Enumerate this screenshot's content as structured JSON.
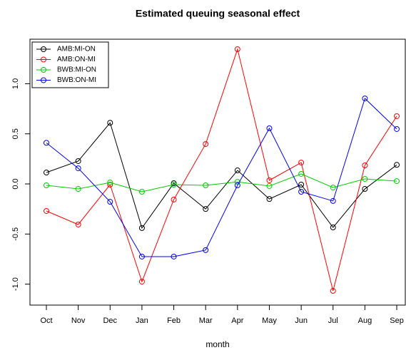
{
  "chart_data": {
    "type": "line",
    "title": "Estimated queuing seasonal effect",
    "x_label": "month",
    "categories": [
      "Oct",
      "Nov",
      "Dec",
      "Jan",
      "Feb",
      "Mar",
      "Apr",
      "May",
      "Jun",
      "Jul",
      "Aug",
      "Sep"
    ],
    "series": [
      {
        "name": "AMB:MI-ON",
        "color": "#000000",
        "values": [
          0.114,
          0.228,
          0.61,
          -0.44,
          0.007,
          -0.25,
          0.135,
          -0.15,
          -0.007,
          -0.434,
          -0.05,
          0.19
        ]
      },
      {
        "name": "AMB:ON-MI",
        "color": "#ff0000",
        "values": [
          -0.27,
          -0.405,
          -0.007,
          -0.975,
          -0.156,
          0.398,
          1.344,
          0.036,
          0.213,
          -1.067,
          0.185,
          0.676
        ]
      },
      {
        "name": "BWB:MI-ON",
        "color": "#00cc00",
        "values": [
          -0.014,
          -0.05,
          0.014,
          -0.078,
          -0.007,
          -0.014,
          0.021,
          -0.021,
          0.1,
          -0.036,
          0.05,
          0.028
        ]
      },
      {
        "name": "BWB:ON-MI",
        "color": "#0000ff",
        "values": [
          0.41,
          0.156,
          -0.178,
          -0.725,
          -0.725,
          -0.66,
          -0.014,
          0.555,
          -0.078,
          -0.17,
          0.853,
          0.548
        ]
      }
    ],
    "ylim": [
      -1.209,
      1.444
    ],
    "yticks": [
      {
        "value": -1.0,
        "label": "-1.0"
      },
      -0.5,
      {
        "value": 0.0,
        "label": "0.0"
      },
      0.5,
      {
        "value": 1.0,
        "label": "1.0"
      }
    ],
    "legend": "top-left"
  }
}
